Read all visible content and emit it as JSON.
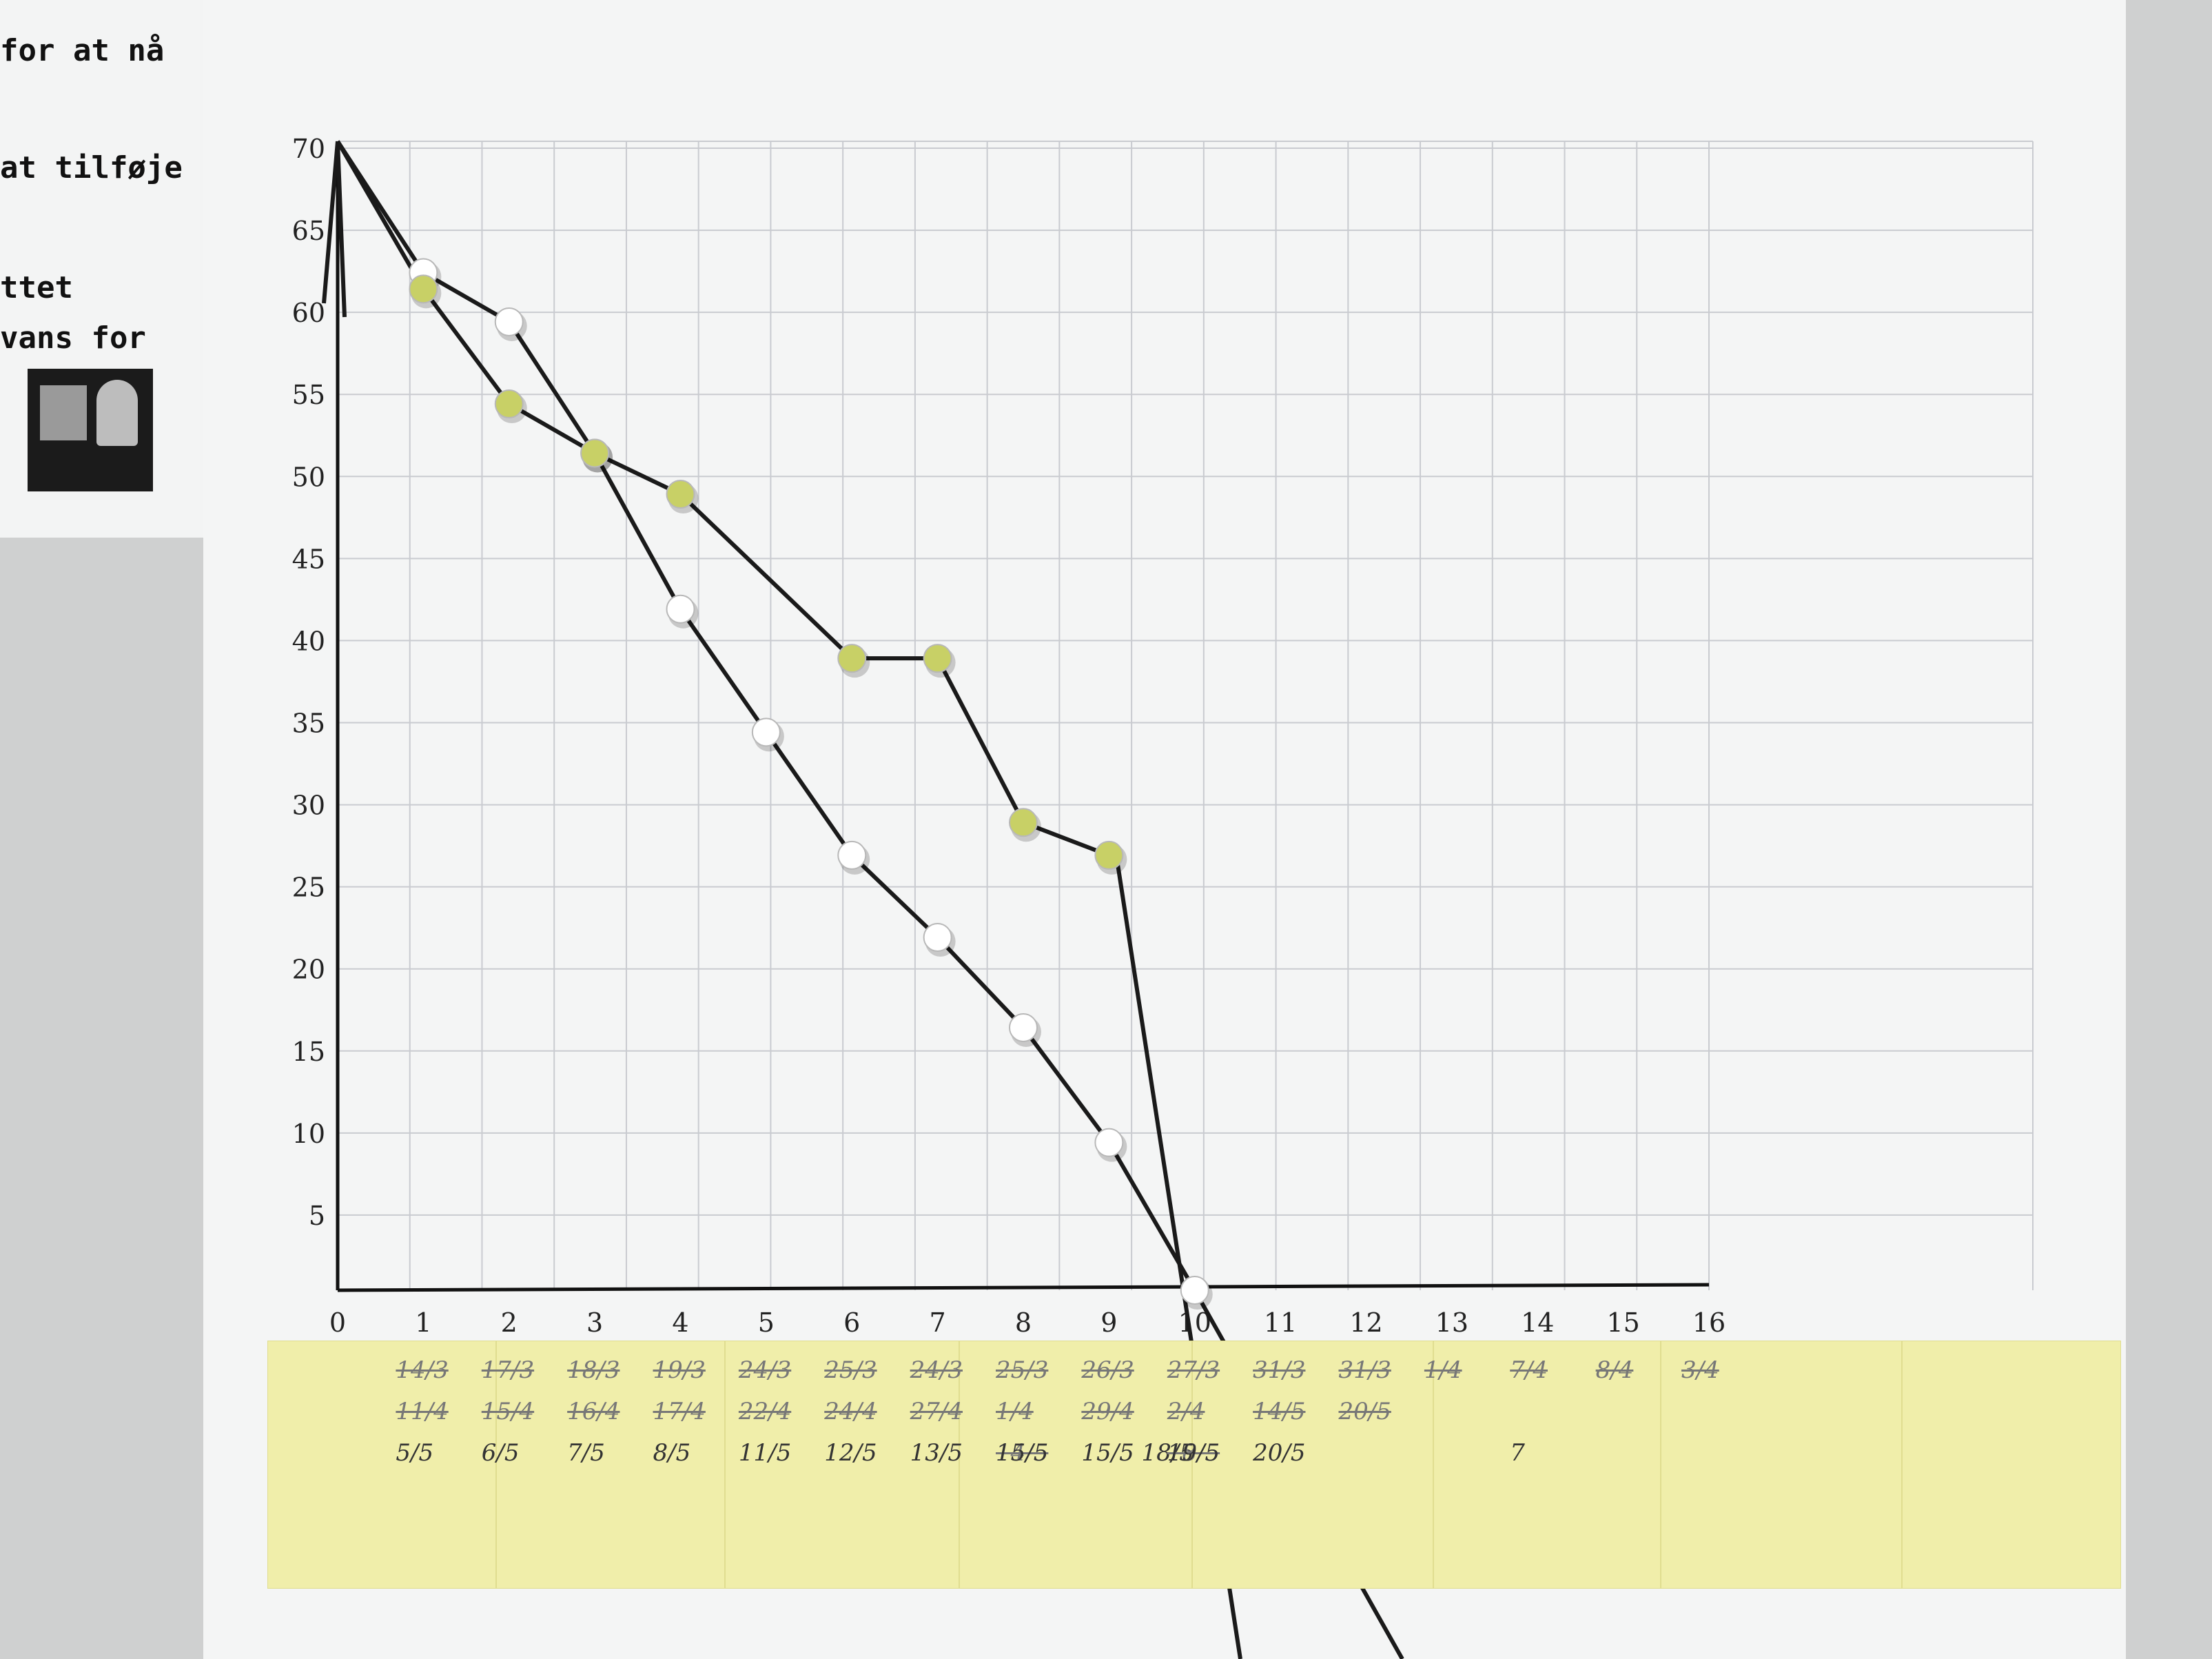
{
  "left_note": {
    "lines": [
      "for at nå",
      "at tilføje",
      "ttet",
      "vans for"
    ]
  },
  "chart_data": {
    "type": "line",
    "title": "",
    "xlabel": "",
    "ylabel": "",
    "xlim": [
      0,
      16
    ],
    "ylim": [
      0,
      70
    ],
    "x_ticks": [
      "0",
      "1",
      "2",
      "3",
      "4",
      "5",
      "6",
      "7",
      "8",
      "9",
      "10",
      "11",
      "12",
      "13",
      "14",
      "15",
      "16"
    ],
    "y_ticks": [
      "5",
      "10",
      "15",
      "20",
      "25",
      "30",
      "35",
      "40",
      "45",
      "50",
      "55",
      "60",
      "65",
      "70"
    ],
    "grid": true,
    "series": [
      {
        "marker": "white-pin",
        "color": "#ffffff",
        "x": [
          0,
          1,
          2,
          3,
          4,
          5,
          6,
          7,
          8,
          9,
          10
        ],
        "y": [
          70,
          62,
          59,
          51,
          41.5,
          34,
          26.5,
          21.5,
          16,
          9,
          0
        ]
      },
      {
        "marker": "yellow-pin",
        "color": "#c8d066",
        "x": [
          0,
          1,
          2,
          3,
          4,
          6,
          7,
          8,
          9
        ],
        "y": [
          70,
          61,
          54,
          51,
          48.5,
          38.5,
          38.5,
          28.5,
          26.5
        ]
      }
    ]
  },
  "date_strip": [
    {
      "x": 1,
      "struck": [
        "14/3",
        "11/4"
      ],
      "current": "5/5"
    },
    {
      "x": 2,
      "struck": [
        "17/3",
        "15/4"
      ],
      "current": "6/5"
    },
    {
      "x": 3,
      "struck": [
        "18/3",
        "16/4"
      ],
      "current": "7/5"
    },
    {
      "x": 4,
      "struck": [
        "19/3",
        "17/4"
      ],
      "current": "8/5"
    },
    {
      "x": 5,
      "struck": [
        "24/3",
        "22/4"
      ],
      "current": "11/5"
    },
    {
      "x": 6,
      "struck": [
        "25/3",
        "24/4"
      ],
      "current": "12/5"
    },
    {
      "x": 7,
      "struck": [
        "24/3",
        "27/4"
      ],
      "current": "13/5"
    },
    {
      "x": 8,
      "struck": [
        "25/3",
        "1/4",
        "14/5"
      ],
      "current": "15/5"
    },
    {
      "x": 9,
      "struck": [
        "26/3",
        "29/4"
      ],
      "current": "15/5 18/5"
    },
    {
      "x": 10,
      "struck": [
        "27/3",
        "2/4",
        "18/5"
      ],
      "current": "19/5"
    },
    {
      "x": 11,
      "struck": [
        "31/3",
        "14/5"
      ],
      "current": "20/5"
    },
    {
      "x": 12,
      "struck": [
        "31/3",
        "20/5"
      ],
      "current": ""
    },
    {
      "x": 13,
      "struck": [
        "1/4"
      ],
      "current": ""
    },
    {
      "x": 14,
      "struck": [
        "7/4"
      ],
      "current": "7"
    },
    {
      "x": 15,
      "struck": [
        "8/4"
      ],
      "current": ""
    },
    {
      "x": 16,
      "struck": [
        "3/4"
      ],
      "current": ""
    }
  ]
}
